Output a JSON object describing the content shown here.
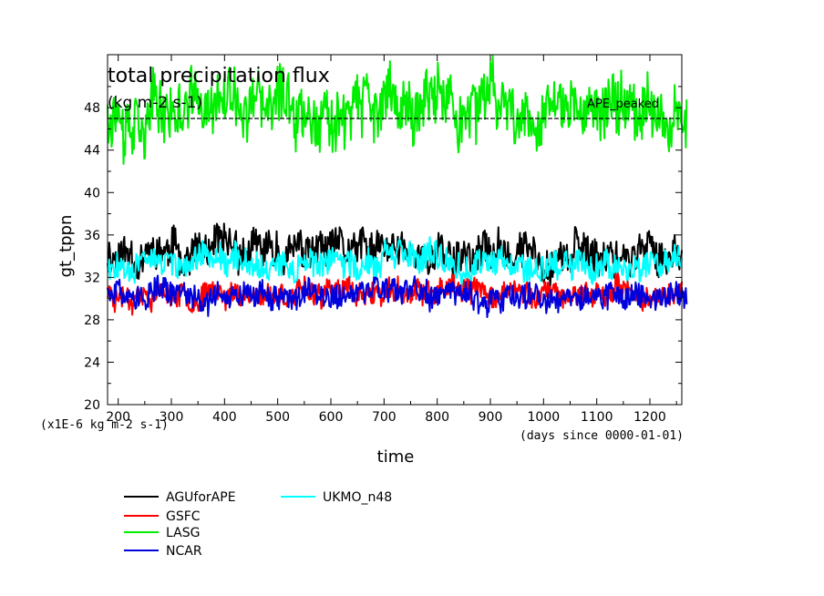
{
  "chart_data": {
    "type": "line",
    "title": "total precipitation flux",
    "subtitle": "(kg m-2 s-1)",
    "xlabel": "time",
    "ylabel": "gt_tppn",
    "x_unit_note": "(days since 0000-01-01)",
    "y_unit_note": "(x1E-6 kg m-2 s-1)",
    "annotation": "APE_peaked",
    "xlim": [
      180,
      1260
    ],
    "ylim": [
      20,
      53
    ],
    "x_ticks": [
      200,
      300,
      400,
      500,
      600,
      700,
      800,
      900,
      1000,
      1100,
      1200
    ],
    "y_ticks": [
      20,
      24,
      28,
      32,
      36,
      40,
      44,
      48
    ],
    "legend_placement": "bottom",
    "grid": false,
    "series": [
      {
        "name": "AGUforAPE",
        "color": "#000000",
        "x_range": [
          180,
          1260
        ],
        "mean": 34.3,
        "amplitude": 1.6,
        "seed": 11
      },
      {
        "name": "GSFC",
        "color": "#ff0000",
        "x_range": [
          180,
          1260
        ],
        "mean": 30.5,
        "amplitude": 1.0,
        "seed": 23
      },
      {
        "name": "LASG",
        "color": "#00ee00",
        "x_range": [
          180,
          1270
        ],
        "mean": 48.0,
        "amplitude": 2.6,
        "seed": 37
      },
      {
        "name": "NCAR",
        "color": "#0000dd",
        "x_range": [
          180,
          1270
        ],
        "mean": 30.3,
        "amplitude": 1.1,
        "seed": 51
      },
      {
        "name": "UKMO_n48",
        "color": "#00ffff",
        "x_range": [
          180,
          1260
        ],
        "mean": 33.5,
        "amplitude": 1.2,
        "seed": 67
      }
    ]
  }
}
